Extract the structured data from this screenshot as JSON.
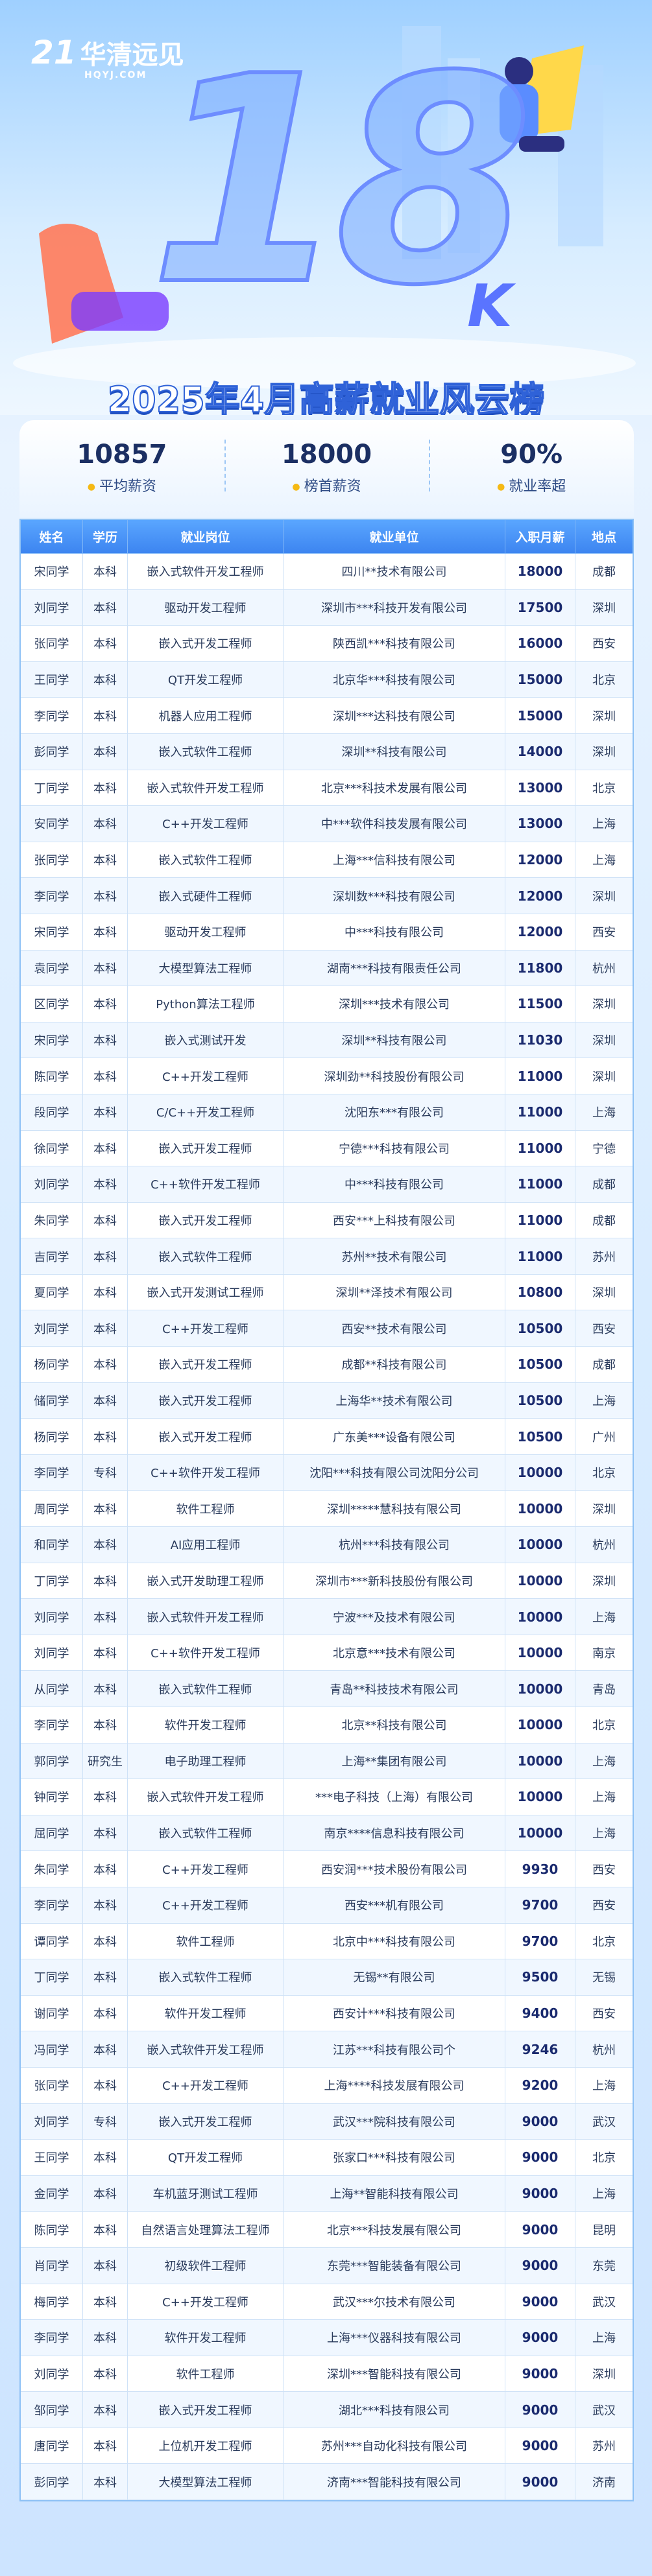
{
  "header": {
    "logo_number": "21",
    "logo_name": "华清远见",
    "logo_site": "HQYJ.COM",
    "big_number": "18",
    "big_unit": "K",
    "title": "2025年4月高薪就业风云榜"
  },
  "stats": [
    {
      "value": "10857",
      "label": "平均薪资"
    },
    {
      "value": "18000",
      "label": "榜首薪资"
    },
    {
      "value": "90%",
      "label": "就业率超"
    }
  ],
  "table": {
    "columns": [
      "姓名",
      "学历",
      "就业岗位",
      "就业单位",
      "入职月薪",
      "地点"
    ],
    "rows": [
      [
        "宋同学",
        "本科",
        "嵌入式软件开发工程师",
        "四川**技术有限公司",
        18000,
        "成都"
      ],
      [
        "刘同学",
        "本科",
        "驱动开发工程师",
        "深圳市***科技开发有限公司",
        17500,
        "深圳"
      ],
      [
        "张同学",
        "本科",
        "嵌入式开发工程师",
        "陕西凯***科技有限公司",
        16000,
        "西安"
      ],
      [
        "王同学",
        "本科",
        "QT开发工程师",
        "北京华***科技有限公司",
        15000,
        "北京"
      ],
      [
        "李同学",
        "本科",
        "机器人应用工程师",
        "深圳***达科技有限公司",
        15000,
        "深圳"
      ],
      [
        "彭同学",
        "本科",
        "嵌入式软件工程师",
        "深圳**科技有限公司",
        14000,
        "深圳"
      ],
      [
        "丁同学",
        "本科",
        "嵌入式软件开发工程师",
        "北京***科技术发展有限公司",
        13000,
        "北京"
      ],
      [
        "安同学",
        "本科",
        "C++开发工程师",
        "中***软件科技发展有限公司",
        13000,
        "上海"
      ],
      [
        "张同学",
        "本科",
        "嵌入式软件工程师",
        "上海***信科技有限公司",
        12000,
        "上海"
      ],
      [
        "李同学",
        "本科",
        "嵌入式硬件工程师",
        "深圳数***科技有限公司",
        12000,
        "深圳"
      ],
      [
        "宋同学",
        "本科",
        "驱动开发工程师",
        "中***科技有限公司",
        12000,
        "西安"
      ],
      [
        "袁同学",
        "本科",
        "大模型算法工程师",
        "湖南***科技有限责任公司",
        11800,
        "杭州"
      ],
      [
        "区同学",
        "本科",
        "Python算法工程师",
        "深圳***技术有限公司",
        11500,
        "深圳"
      ],
      [
        "宋同学",
        "本科",
        "嵌入式测试开发",
        "深圳**科技有限公司",
        11030,
        "深圳"
      ],
      [
        "陈同学",
        "本科",
        "C++开发工程师",
        "深圳劲**科技股份有限公司",
        11000,
        "深圳"
      ],
      [
        "段同学",
        "本科",
        "C/C++开发工程师",
        "沈阳东***有限公司",
        11000,
        "上海"
      ],
      [
        "徐同学",
        "本科",
        "嵌入式开发工程师",
        "宁德***科技有限公司",
        11000,
        "宁德"
      ],
      [
        "刘同学",
        "本科",
        "C++软件开发工程师",
        "中***科技有限公司",
        11000,
        "成都"
      ],
      [
        "朱同学",
        "本科",
        "嵌入式开发工程师",
        "西安***上科技有限公司",
        11000,
        "成都"
      ],
      [
        "吉同学",
        "本科",
        "嵌入式软件工程师",
        "苏州**技术有限公司",
        11000,
        "苏州"
      ],
      [
        "夏同学",
        "本科",
        "嵌入式开发测试工程师",
        "深圳**泽技术有限公司",
        10800,
        "深圳"
      ],
      [
        "刘同学",
        "本科",
        "C++开发工程师",
        "西安**技术有限公司",
        10500,
        "西安"
      ],
      [
        "杨同学",
        "本科",
        "嵌入式开发工程师",
        "成都**科技有限公司",
        10500,
        "成都"
      ],
      [
        "储同学",
        "本科",
        "嵌入式开发工程师",
        "上海华**技术有限公司",
        10500,
        "上海"
      ],
      [
        "杨同学",
        "本科",
        "嵌入式开发工程师",
        "广东美***设备有限公司",
        10500,
        "广州"
      ],
      [
        "李同学",
        "专科",
        "C++软件开发工程师",
        "沈阳***科技有限公司沈阳分公司",
        10000,
        "北京"
      ],
      [
        "周同学",
        "本科",
        "软件工程师",
        "深圳*****慧科技有限公司",
        10000,
        "深圳"
      ],
      [
        "和同学",
        "本科",
        "AI应用工程师",
        "杭州***科技有限公司",
        10000,
        "杭州"
      ],
      [
        "丁同学",
        "本科",
        "嵌入式开发助理工程师",
        "深圳市***新科技股份有限公司",
        10000,
        "深圳"
      ],
      [
        "刘同学",
        "本科",
        "嵌入式软件开发工程师",
        "宁波***及技术有限公司",
        10000,
        "上海"
      ],
      [
        "刘同学",
        "本科",
        "C++软件开发工程师",
        "北京意***技术有限公司",
        10000,
        "南京"
      ],
      [
        "从同学",
        "本科",
        "嵌入式软件工程师",
        "青岛**科技技术有限公司",
        10000,
        "青岛"
      ],
      [
        "李同学",
        "本科",
        "软件开发工程师",
        "北京**科技有限公司",
        10000,
        "北京"
      ],
      [
        "郭同学",
        "研究生",
        "电子助理工程师",
        "上海**集团有限公司",
        10000,
        "上海"
      ],
      [
        "钟同学",
        "本科",
        "嵌入式软件开发工程师",
        "***电子科技（上海）有限公司",
        10000,
        "上海"
      ],
      [
        "屈同学",
        "本科",
        "嵌入式软件工程师",
        "南京****信息科技有限公司",
        10000,
        "上海"
      ],
      [
        "朱同学",
        "本科",
        "C++开发工程师",
        "西安润***技术股份有限公司",
        9930,
        "西安"
      ],
      [
        "李同学",
        "本科",
        "C++开发工程师",
        "西安***机有限公司",
        9700,
        "西安"
      ],
      [
        "谭同学",
        "本科",
        "软件工程师",
        "北京中***科技有限公司",
        9700,
        "北京"
      ],
      [
        "丁同学",
        "本科",
        "嵌入式软件工程师",
        "无锡**有限公司",
        9500,
        "无锡"
      ],
      [
        "谢同学",
        "本科",
        "软件开发工程师",
        "西安计***科技有限公司",
        9400,
        "西安"
      ],
      [
        "冯同学",
        "本科",
        "嵌入式软件开发工程师",
        "江苏***科技有限公司个",
        9246,
        "杭州"
      ],
      [
        "张同学",
        "本科",
        "C++开发工程师",
        "上海****科技发展有限公司",
        9200,
        "上海"
      ],
      [
        "刘同学",
        "专科",
        "嵌入式开发工程师",
        "武汉***院科技有限公司",
        9000,
        "武汉"
      ],
      [
        "王同学",
        "本科",
        "QT开发工程师",
        "张家口***科技有限公司",
        9000,
        "北京"
      ],
      [
        "金同学",
        "本科",
        "车机蓝牙测试工程师",
        "上海**智能科技有限公司",
        9000,
        "上海"
      ],
      [
        "陈同学",
        "本科",
        "自然语言处理算法工程师",
        "北京***科技发展有限公司",
        9000,
        "昆明"
      ],
      [
        "肖同学",
        "本科",
        "初级软件工程师",
        "东莞***智能装备有限公司",
        9000,
        "东莞"
      ],
      [
        "梅同学",
        "本科",
        "C++开发工程师",
        "武汉***尔技术有限公司",
        9000,
        "武汉"
      ],
      [
        "李同学",
        "本科",
        "软件开发工程师",
        "上海***仪器科技有限公司",
        9000,
        "上海"
      ],
      [
        "刘同学",
        "本科",
        "软件工程师",
        "深圳***智能科技有限公司",
        9000,
        "深圳"
      ],
      [
        "邹同学",
        "本科",
        "嵌入式开发工程师",
        "湖北***科技有限公司",
        9000,
        "武汉"
      ],
      [
        "唐同学",
        "本科",
        "上位机开发工程师",
        "苏州***自动化科技有限公司",
        9000,
        "苏州"
      ],
      [
        "彭同学",
        "本科",
        "大模型算法工程师",
        "济南***智能科技有限公司",
        9000,
        "济南"
      ]
    ]
  }
}
